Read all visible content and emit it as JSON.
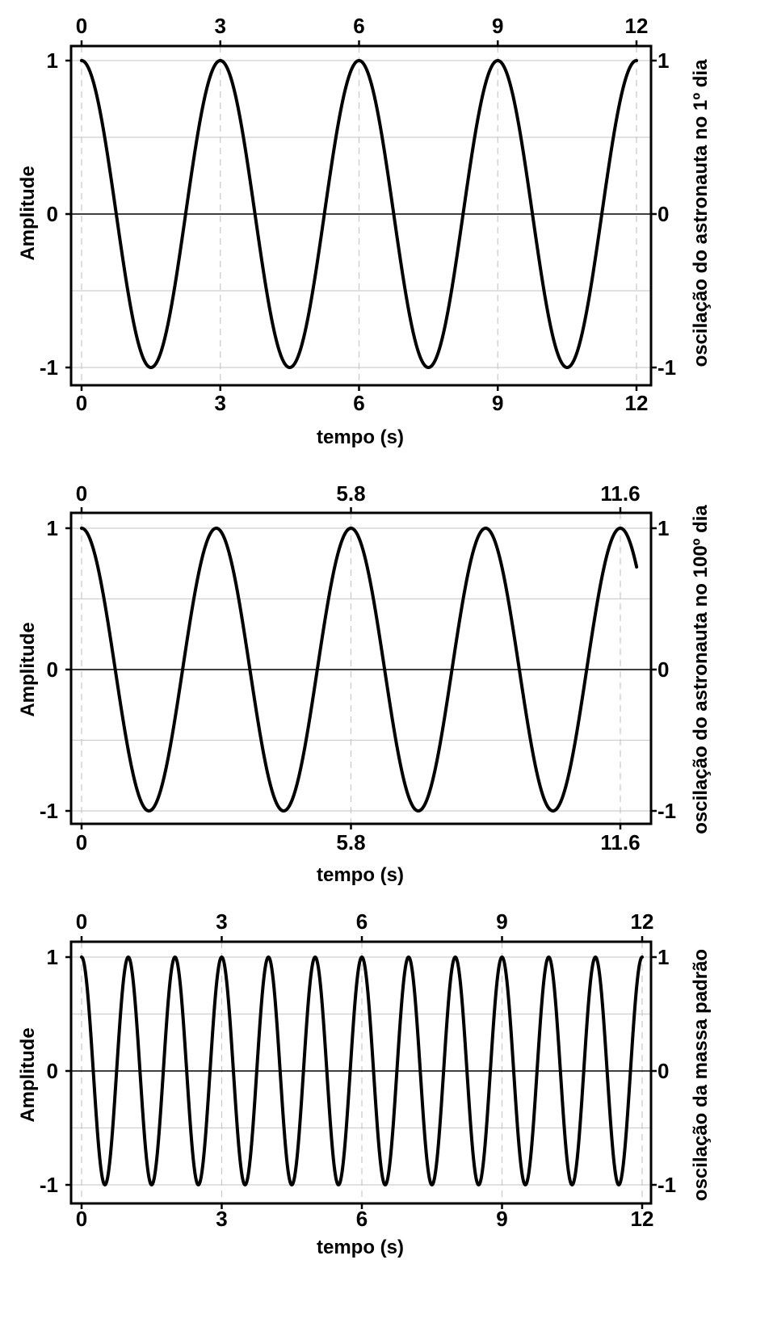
{
  "chart_data": [
    {
      "type": "line",
      "title": "",
      "xlabel": "tempo (s)",
      "ylabel": "Amplitude",
      "y2label": "oscilação do astronauta no 1º dia",
      "xlim": [
        0,
        12
      ],
      "ylim": [
        -1,
        1
      ],
      "xticks": [
        "0",
        "3",
        "6",
        "9",
        "12"
      ],
      "xtick_values": [
        0,
        3,
        6,
        9,
        12
      ],
      "yticks": [
        "1",
        "0",
        "-1"
      ],
      "ytick_values": [
        1,
        0,
        -1
      ],
      "grid": true,
      "series": [
        {
          "function": "cosine",
          "amplitude": 1,
          "period": 3,
          "x_start": 0,
          "x_end": 12
        }
      ]
    },
    {
      "type": "line",
      "title": "",
      "xlabel": "tempo (s)",
      "ylabel": "Amplitude",
      "y2label": "oscilação do astronauta no 100º dia",
      "xlim": [
        0,
        11.6
      ],
      "ylim": [
        -1,
        1
      ],
      "xticks": [
        "0",
        "5.8",
        "11.6"
      ],
      "xtick_values": [
        0,
        5.8,
        11.6
      ],
      "yticks": [
        "1",
        "0",
        "-1"
      ],
      "ytick_values": [
        1,
        0,
        -1
      ],
      "grid": true,
      "series": [
        {
          "function": "cosine",
          "amplitude": 1,
          "period": 2.9,
          "x_start": 0,
          "x_end": 11.95
        }
      ]
    },
    {
      "type": "line",
      "title": "",
      "xlabel": "tempo (s)",
      "ylabel": "Amplitude",
      "y2label": "oscilação da massa padrão",
      "xlim": [
        0,
        12
      ],
      "ylim": [
        -1,
        1
      ],
      "xticks": [
        "0",
        "3",
        "6",
        "9",
        "12"
      ],
      "xtick_values": [
        0,
        3,
        6,
        9,
        12
      ],
      "yticks": [
        "1",
        "0",
        "-1"
      ],
      "ytick_values": [
        1,
        0,
        -1
      ],
      "grid": true,
      "series": [
        {
          "function": "cosine",
          "amplitude": 1,
          "period": 1,
          "x_start": 0,
          "x_end": 12
        }
      ]
    }
  ]
}
